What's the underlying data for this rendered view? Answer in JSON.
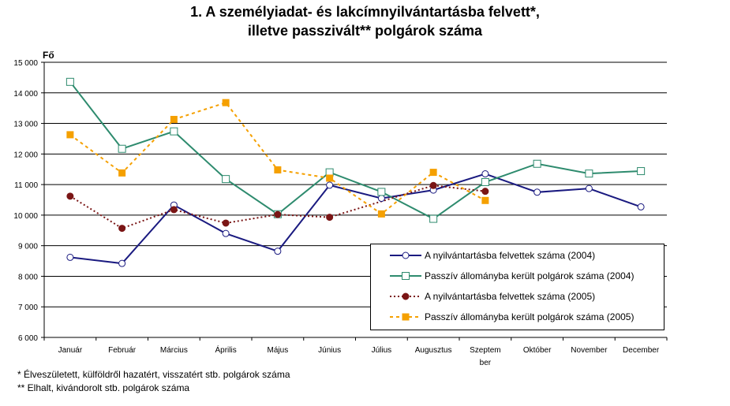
{
  "title_line1": "1. A személyiadat- és lakcímnyilvántartásba felvett*,",
  "title_line2": "illetve passzivált** polgárok száma",
  "footnote1": "* Élveszületett, külföldről hazatért, visszatért stb. polgárok száma",
  "footnote2": "** Elhalt, kivándorolt stb. polgárok száma",
  "chart_data": {
    "type": "line",
    "ylabel": "Fő",
    "ylim": [
      6000,
      15000
    ],
    "yticks": [
      6000,
      7000,
      8000,
      9000,
      10000,
      11000,
      12000,
      13000,
      14000,
      15000
    ],
    "ytick_labels": [
      "6 000",
      "7 000",
      "8 000",
      "9 000",
      "10 000",
      "11 000",
      "12 000",
      "13 000",
      "14 000",
      "15 000"
    ],
    "categories": [
      "Január",
      "Február",
      "Március",
      "Április",
      "Május",
      "Június",
      "Július",
      "Augusztus",
      "Szeptem-ber",
      "Október",
      "November",
      "December"
    ],
    "grid": "horizontal",
    "legend_position": "bottom-right",
    "series": [
      {
        "name": "A nyilvántartásba felvettek száma (2004)",
        "color": "#1a1a80",
        "style": "solid",
        "marker": "circle-open",
        "values": [
          8620,
          8420,
          10330,
          9400,
          8820,
          10980,
          10550,
          10820,
          11350,
          10750,
          10870,
          10270
        ]
      },
      {
        "name": "Passzív állományba került polgárok száma (2004)",
        "color": "#2e8b6e",
        "style": "solid",
        "marker": "square-open",
        "values": [
          14360,
          12170,
          12740,
          11180,
          10030,
          11400,
          10760,
          9880,
          11080,
          11680,
          11360,
          11440
        ]
      },
      {
        "name": "A nyilvántartásba felvettek száma (2005)",
        "color": "#7a1515",
        "style": "dotted",
        "marker": "circle-filled",
        "values": [
          10620,
          9570,
          10180,
          9740,
          10020,
          9930,
          null,
          10970,
          10780,
          null,
          null,
          null
        ]
      },
      {
        "name": "Passzív állományba került polgárok száma (2005)",
        "color": "#f5a000",
        "style": "dashed",
        "marker": "square-filled",
        "values": [
          12630,
          11380,
          13130,
          13680,
          11480,
          11210,
          10040,
          11400,
          10480,
          null,
          null,
          null
        ]
      }
    ]
  }
}
